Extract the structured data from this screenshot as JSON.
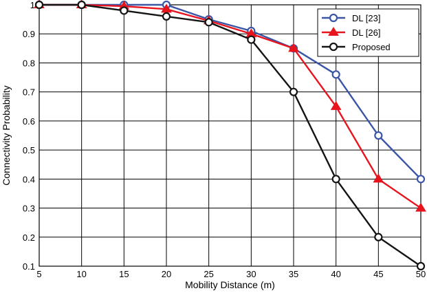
{
  "chart_data": {
    "type": "line",
    "title": "",
    "xlabel": "Mobility Distance (m)",
    "ylabel": "Connectivity Probability",
    "x": [
      5,
      10,
      15,
      20,
      25,
      30,
      35,
      40,
      45,
      50
    ],
    "xlim": [
      5,
      50
    ],
    "ylim": [
      0.1,
      1.0
    ],
    "xticks": [
      "5",
      "10",
      "15",
      "20",
      "25",
      "30",
      "35",
      "40",
      "45",
      "50"
    ],
    "yticks": [
      "0.1",
      "0.2",
      "0.3",
      "0.4",
      "0.5",
      "0.6",
      "0.7",
      "0.8",
      "0.9",
      "1"
    ],
    "grid": true,
    "legend_position": "top-right",
    "series": [
      {
        "name": "DL [23]",
        "color": "#3a55a6",
        "marker": "circle",
        "values": [
          1.0,
          1.0,
          1.0,
          1.0,
          0.95,
          0.91,
          0.85,
          0.76,
          0.55,
          0.4
        ]
      },
      {
        "name": "DL [26]",
        "color": "#e8141d",
        "marker": "triangle",
        "values": [
          1.0,
          1.0,
          0.995,
          0.985,
          0.945,
          0.9,
          0.85,
          0.65,
          0.4,
          0.3
        ]
      },
      {
        "name": "Proposed",
        "color": "#141414",
        "marker": "circle",
        "values": [
          1.0,
          1.0,
          0.98,
          0.96,
          0.94,
          0.88,
          0.7,
          0.4,
          0.2,
          0.1
        ]
      }
    ]
  }
}
